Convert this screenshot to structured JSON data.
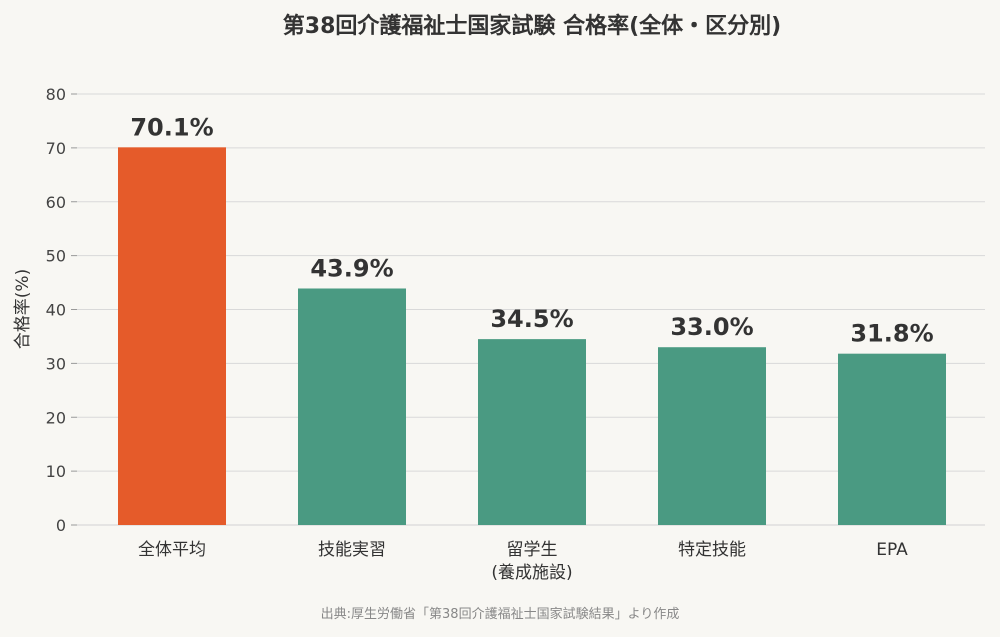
{
  "chart_data": {
    "type": "bar",
    "title": "第38回介護福祉士国家試験 合格率(全体・区分別)",
    "ylabel": "合格率(%)",
    "xlabel": "",
    "ylim": [
      0,
      80
    ],
    "yticks": [
      "0",
      "10",
      "20",
      "30",
      "40",
      "50",
      "60",
      "70",
      "80"
    ],
    "grid": true,
    "categories": [
      [
        "全体平均"
      ],
      [
        "技能実習"
      ],
      [
        "留学生",
        "(養成施設)"
      ],
      [
        "特定技能"
      ],
      [
        "EPA"
      ]
    ],
    "values": [
      70.1,
      43.9,
      34.5,
      33.0,
      31.8
    ],
    "value_labels": [
      "70.1%",
      "43.9%",
      "34.5%",
      "33.0%",
      "31.8%"
    ],
    "colors": [
      "#e55b2a",
      "#4a9a82",
      "#4a9a82",
      "#4a9a82",
      "#4a9a82"
    ],
    "grid_color": "#d9d9d9",
    "source": "出典:厚生労働省「第38回介護福祉士国家試験結果」より作成"
  }
}
